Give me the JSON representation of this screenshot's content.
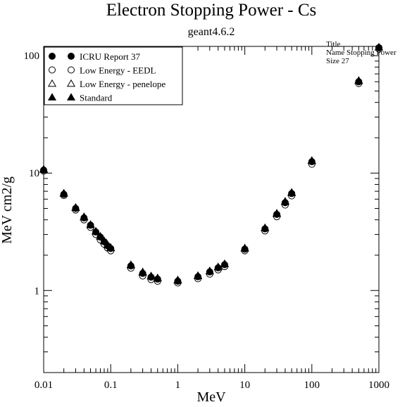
{
  "chart_data": {
    "type": "scatter",
    "title": "Electron Stopping Power - Cs",
    "subtitle": "geant4.6.2",
    "xlabel": "MeV",
    "ylabel": "MeV cm2/g",
    "xscale": "log",
    "yscale": "log",
    "xlim": [
      0.01,
      1000
    ],
    "ylim": [
      0.2,
      120
    ],
    "x_tick_labels": [
      "0.01",
      "0.1",
      "1",
      "10",
      "100",
      "1000"
    ],
    "y_tick_labels": [
      "1",
      "10",
      "100"
    ],
    "legend_position": "top-left",
    "stats_box": {
      "lines": [
        "Title",
        "Name  Stopping Power",
        "Size  27"
      ]
    },
    "x": [
      0.01,
      0.02,
      0.03,
      0.04,
      0.05,
      0.06,
      0.07,
      0.08,
      0.09,
      0.1,
      0.2,
      0.3,
      0.4,
      0.5,
      1,
      2,
      3,
      4,
      5,
      10,
      20,
      30,
      40,
      50,
      100,
      500,
      1000
    ],
    "series": [
      {
        "name": "ICRU Report 37",
        "marker": "filled-circle",
        "values": [
          10.6,
          6.6,
          5.0,
          4.15,
          3.6,
          3.15,
          2.85,
          2.6,
          2.4,
          2.28,
          1.62,
          1.4,
          1.3,
          1.25,
          1.2,
          1.31,
          1.44,
          1.56,
          1.66,
          2.25,
          3.35,
          4.45,
          5.6,
          6.7,
          12.5,
          60,
          117
        ]
      },
      {
        "name": "Low Energy - EEDL",
        "marker": "open-circle",
        "values": [
          10.4,
          6.45,
          4.85,
          4.0,
          3.45,
          3.0,
          2.7,
          2.48,
          2.3,
          2.18,
          1.55,
          1.33,
          1.24,
          1.2,
          1.16,
          1.26,
          1.38,
          1.5,
          1.6,
          2.18,
          3.22,
          4.25,
          5.35,
          6.4,
          11.9,
          58,
          114
        ]
      },
      {
        "name": "Low Energy - penelope",
        "marker": "open-triangle",
        "values": [
          10.7,
          6.7,
          5.05,
          4.2,
          3.62,
          3.18,
          2.88,
          2.63,
          2.43,
          2.3,
          1.64,
          1.42,
          1.32,
          1.27,
          1.22,
          1.33,
          1.46,
          1.58,
          1.68,
          2.28,
          3.4,
          4.5,
          5.7,
          6.8,
          12.7,
          61,
          118
        ]
      },
      {
        "name": "Standard",
        "marker": "filled-triangle",
        "values": [
          10.8,
          6.75,
          5.1,
          4.25,
          3.65,
          3.2,
          2.9,
          2.65,
          2.45,
          2.32,
          1.66,
          1.44,
          1.33,
          1.28,
          1.23,
          1.34,
          1.47,
          1.59,
          1.69,
          2.3,
          3.42,
          4.55,
          5.75,
          6.85,
          12.8,
          61.5,
          118
        ]
      }
    ]
  }
}
